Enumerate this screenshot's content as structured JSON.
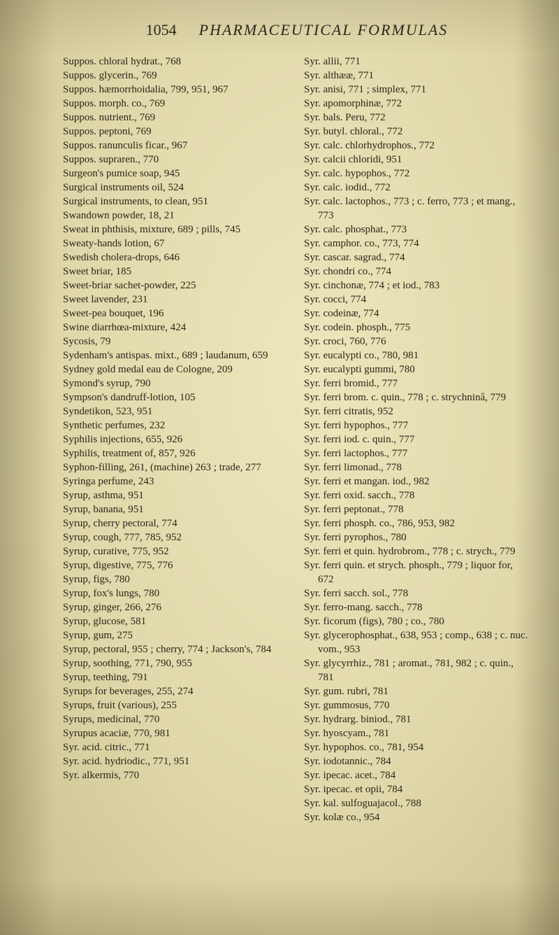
{
  "header": {
    "page_number": "1054",
    "title": "PHARMACEUTICAL FORMULAS"
  },
  "left_column": [
    "Suppos. chloral hydrat., 768",
    "Suppos. glycerin., 769",
    "Suppos. hæmorrhoidalia, 799, 951, 967",
    "Suppos. morph. co., 769",
    "Suppos. nutrient., 769",
    "Suppos. peptoni, 769",
    "Suppos. ranunculis ficar., 967",
    "Suppos. supraren., 770",
    "Surgeon's pumice soap, 945",
    "Surgical instruments oil, 524",
    "Surgical instruments, to clean, 951",
    "Swandown powder, 18, 21",
    "Sweat in phthisis, mixture, 689 ; pills, 745",
    "Sweaty-hands lotion, 67",
    "Swedish cholera-drops, 646",
    "Sweet briar, 185",
    "Sweet-briar sachet-powder, 225",
    "Sweet lavender, 231",
    "Sweet-pea bouquet, 196",
    "Swine diarrhœa-mixture, 424",
    "Sycosis, 79",
    "Sydenham's antispas. mixt., 689 ; laudanum, 659",
    "Sydney gold medal eau de Cologne, 209",
    "Symond's syrup, 790",
    "Sympson's dandruff-lotion, 105",
    "Syndetikon, 523, 951",
    "Synthetic perfumes, 232",
    "Syphilis injections, 655, 926",
    "Syphilis, treatment of, 857, 926",
    "Syphon-filling, 261, (machine) 263 ; trade, 277",
    "Syringa perfume, 243",
    "Syrup, asthma, 951",
    "Syrup, banana, 951",
    "Syrup, cherry pectoral, 774",
    "Syrup, cough, 777, 785, 952",
    "Syrup, curative, 775, 952",
    "Syrup, digestive, 775, 776",
    "Syrup, figs, 780",
    "Syrup, fox's lungs, 780",
    "Syrup, ginger, 266, 276",
    "Syrup, glucose, 581",
    "Syrup, gum, 275",
    "Syrup, pectoral, 955 ; cherry, 774 ; Jackson's, 784",
    "Syrup, soothing, 771, 790, 955",
    "Syrup, teething, 791",
    "Syrups for beverages, 255, 274",
    "Syrups, fruit (various), 255",
    "Syrups, medicinal, 770",
    "Syrupus acaciæ, 770, 981",
    "Syr. acid. citric., 771",
    "Syr. acid. hydriodic., 771, 951",
    "Syr. alkermis, 770"
  ],
  "right_column": [
    "Syr. allii, 771",
    "Syr. althææ, 771",
    "Syr. anisi, 771 ; simplex, 771",
    "Syr. apomorphinæ, 772",
    "Syr. bals. Peru, 772",
    "Syr. butyl. chloral., 772",
    "Syr. calc. chlorhydrophos., 772",
    "Syr. calcii chloridi, 951",
    "Syr. calc. hypophos., 772",
    "Syr. calc. iodid., 772",
    "Syr. calc. lactophos., 773 ; c. ferro, 773 ; et mang., 773",
    "Syr. calc. phosphat., 773",
    "Syr. camphor. co., 773, 774",
    "Syr. cascar. sagrad., 774",
    "Syr. chondri co., 774",
    "Syr. cinchonæ, 774 ; et iod., 783",
    "Syr. cocci, 774",
    "Syr. codeinæ, 774",
    "Syr. codein. phosph., 775",
    "Syr. croci, 760, 776",
    "Syr. eucalypti co., 780, 981",
    "Syr. eucalypti gummi, 780",
    "Syr. ferri bromid., 777",
    "Syr. ferri brom. c. quin., 778 ; c. strychninâ, 779",
    "Syr. ferri citratis, 952",
    "Syr. ferri hypophos., 777",
    "Syr. ferri iod. c. quin., 777",
    "Syr. ferri lactophos., 777",
    "Syr. ferri limonad., 778",
    "Syr. ferri et mangan. iod., 982",
    "Syr. ferri oxid. sacch., 778",
    "Syr. ferri peptonat., 778",
    "Syr. ferri phosph. co., 786, 953, 982",
    "Syr. ferri pyrophos., 780",
    "Syr. ferri et quin. hydrobrom., 778 ; c. strych., 779",
    "Syr. ferri quin. et strych. phosph., 779 ; liquor for, 672",
    "Syr. ferri sacch. sol., 778",
    "Syr. ferro-mang. sacch., 778",
    "Syr. ficorum (figs), 780 ; co., 780",
    "Syr. glycerophosphat., 638, 953 ; comp., 638 ; c. nuc. vom., 953",
    "Syr. glycyrrhiz., 781 ; aromat., 781, 982 ; c. quin., 781",
    "Syr. gum. rubri, 781",
    "Syr. gummosus, 770",
    "Syr. hydrarg. biniod., 781",
    "Syr. hyoscyam., 781",
    "Syr. hypophos. co., 781, 954",
    "Syr. iodotannic., 784",
    "Syr. ipecac. acet., 784",
    "Syr. ipecac. et opii, 784",
    "Syr. kal. sulfoguajacol., 788",
    "Syr. kolæ co., 954"
  ]
}
